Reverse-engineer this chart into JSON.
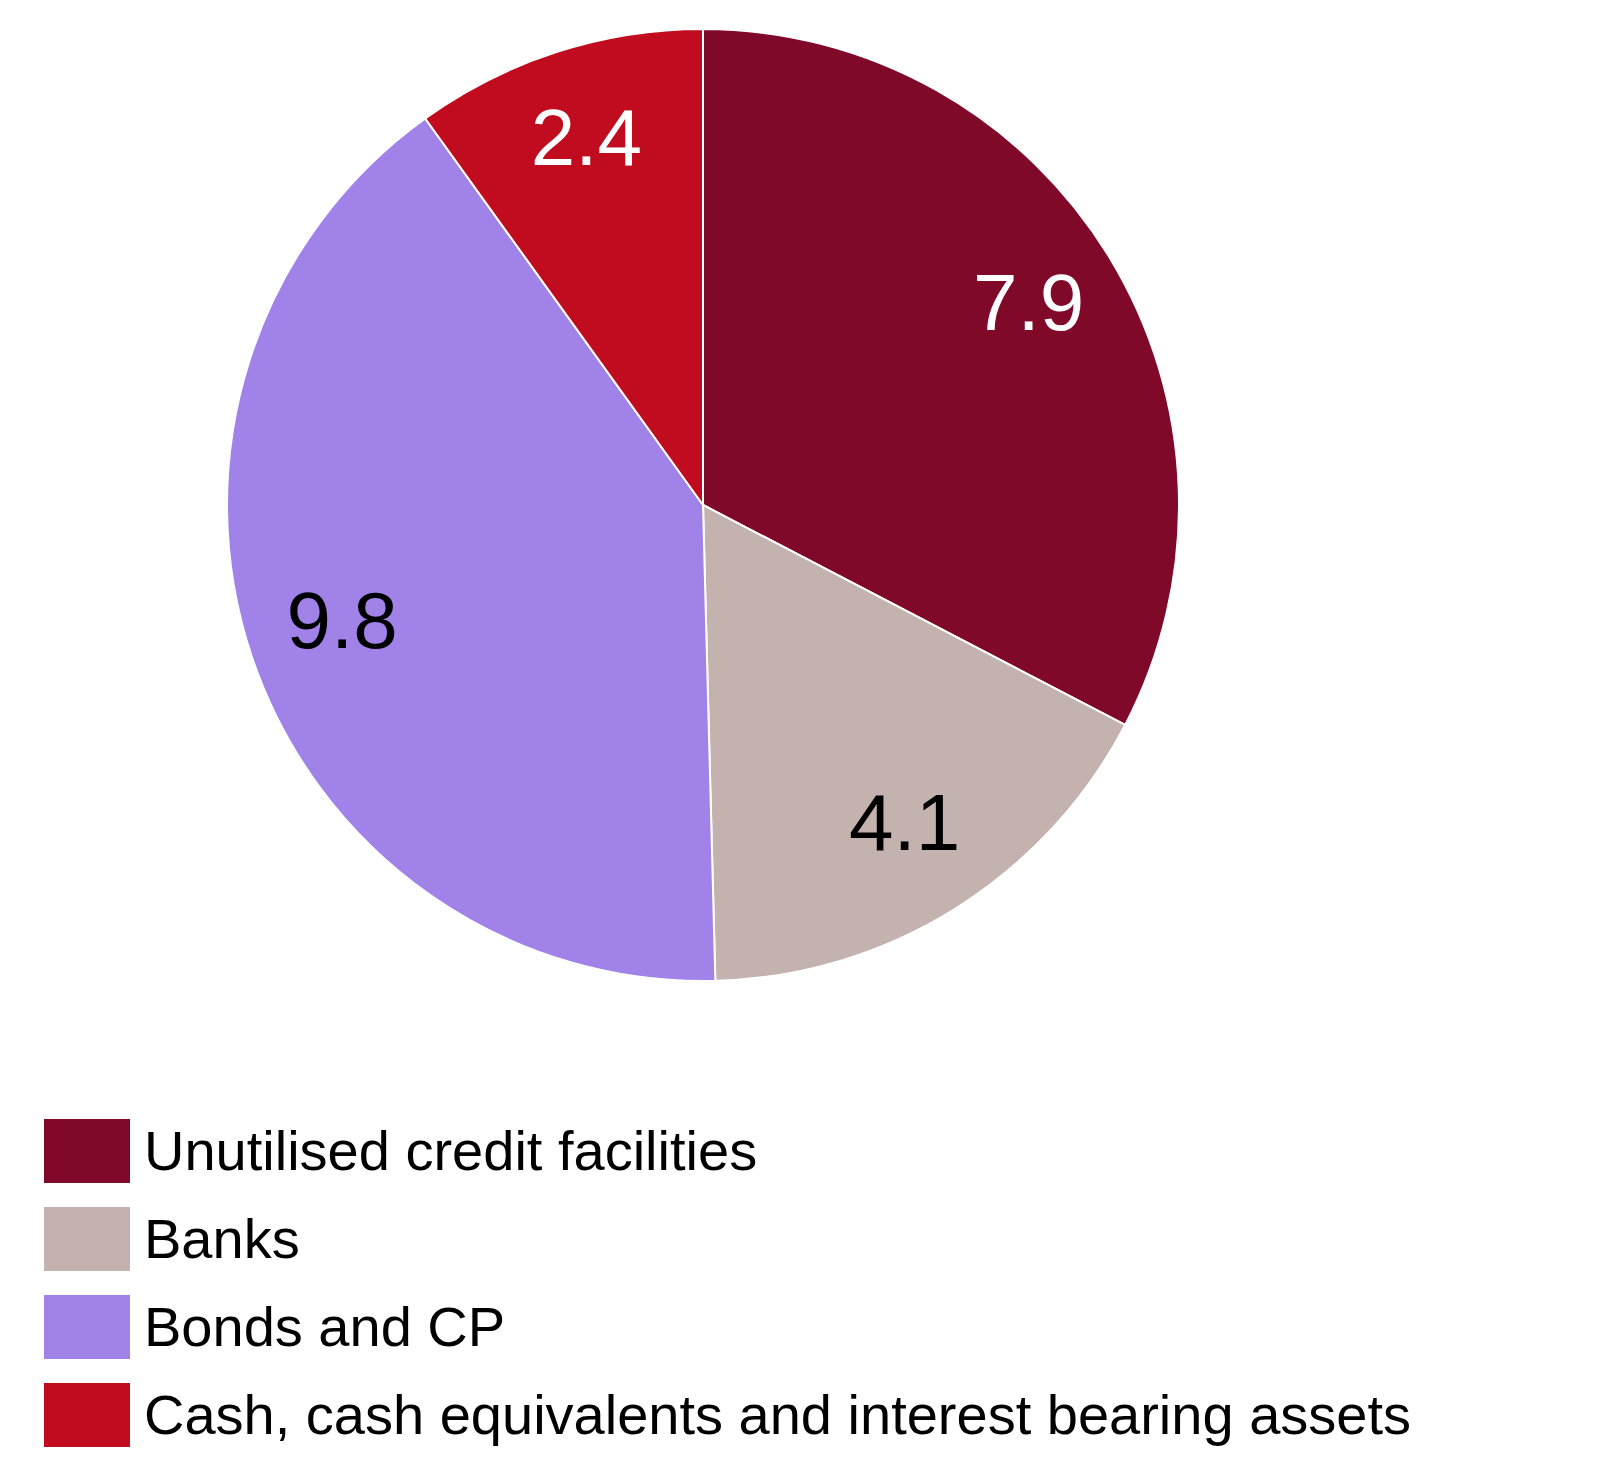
{
  "chart_data": {
    "type": "pie",
    "categories": [
      "Unutilised credit facilities",
      "Banks",
      "Bonds and CP",
      "Cash, cash equivalents and interest bearing assets"
    ],
    "values": [
      7.9,
      4.1,
      9.8,
      2.4
    ],
    "colors": [
      "#800828",
      "#c4b2ae",
      "#a082e8",
      "#c00c1e"
    ],
    "data_labels": true,
    "legend": "bottom"
  }
}
